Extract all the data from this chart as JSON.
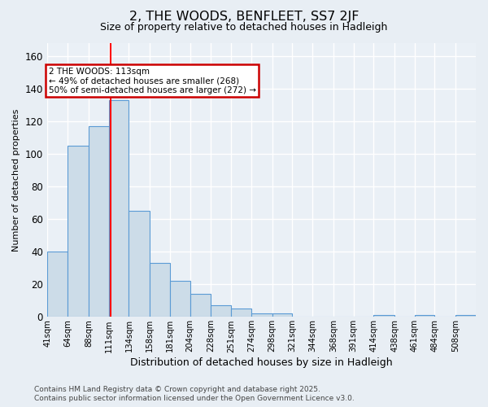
{
  "title_line1": "2, THE WOODS, BENFLEET, SS7 2JF",
  "title_line2": "Size of property relative to detached houses in Hadleigh",
  "xlabel": "Distribution of detached houses by size in Hadleigh",
  "ylabel": "Number of detached properties",
  "bin_labels": [
    "41sqm",
    "64sqm",
    "88sqm",
    "111sqm",
    "134sqm",
    "158sqm",
    "181sqm",
    "204sqm",
    "228sqm",
    "251sqm",
    "274sqm",
    "298sqm",
    "321sqm",
    "344sqm",
    "368sqm",
    "391sqm",
    "414sqm",
    "438sqm",
    "461sqm",
    "484sqm",
    "508sqm"
  ],
  "bin_edges": [
    41,
    64,
    88,
    111,
    134,
    158,
    181,
    204,
    228,
    251,
    274,
    298,
    321,
    344,
    368,
    391,
    414,
    438,
    461,
    484,
    508,
    531
  ],
  "bar_heights": [
    40,
    105,
    117,
    133,
    65,
    33,
    22,
    14,
    7,
    5,
    2,
    2,
    0,
    0,
    0,
    0,
    1,
    0,
    1,
    0,
    1
  ],
  "bar_facecolor": "#ccdce8",
  "bar_edgecolor": "#5b9bd5",
  "red_line_x": 113,
  "annotation_line1": "2 THE WOODS: 113sqm",
  "annotation_line2": "← 49% of detached houses are smaller (268)",
  "annotation_line3": "50% of semi-detached houses are larger (272) →",
  "annotation_box_color": "#ffffff",
  "annotation_box_edgecolor": "#cc0000",
  "footer_text": "Contains HM Land Registry data © Crown copyright and database right 2025.\nContains public sector information licensed under the Open Government Licence v3.0.",
  "ylim": [
    0,
    168
  ],
  "yticks": [
    0,
    20,
    40,
    60,
    80,
    100,
    120,
    140,
    160
  ],
  "background_color": "#e8eef4",
  "plot_bg_color": "#eaf0f6",
  "grid_color": "#ffffff",
  "figsize": [
    6.0,
    5.0
  ],
  "dpi": 100
}
